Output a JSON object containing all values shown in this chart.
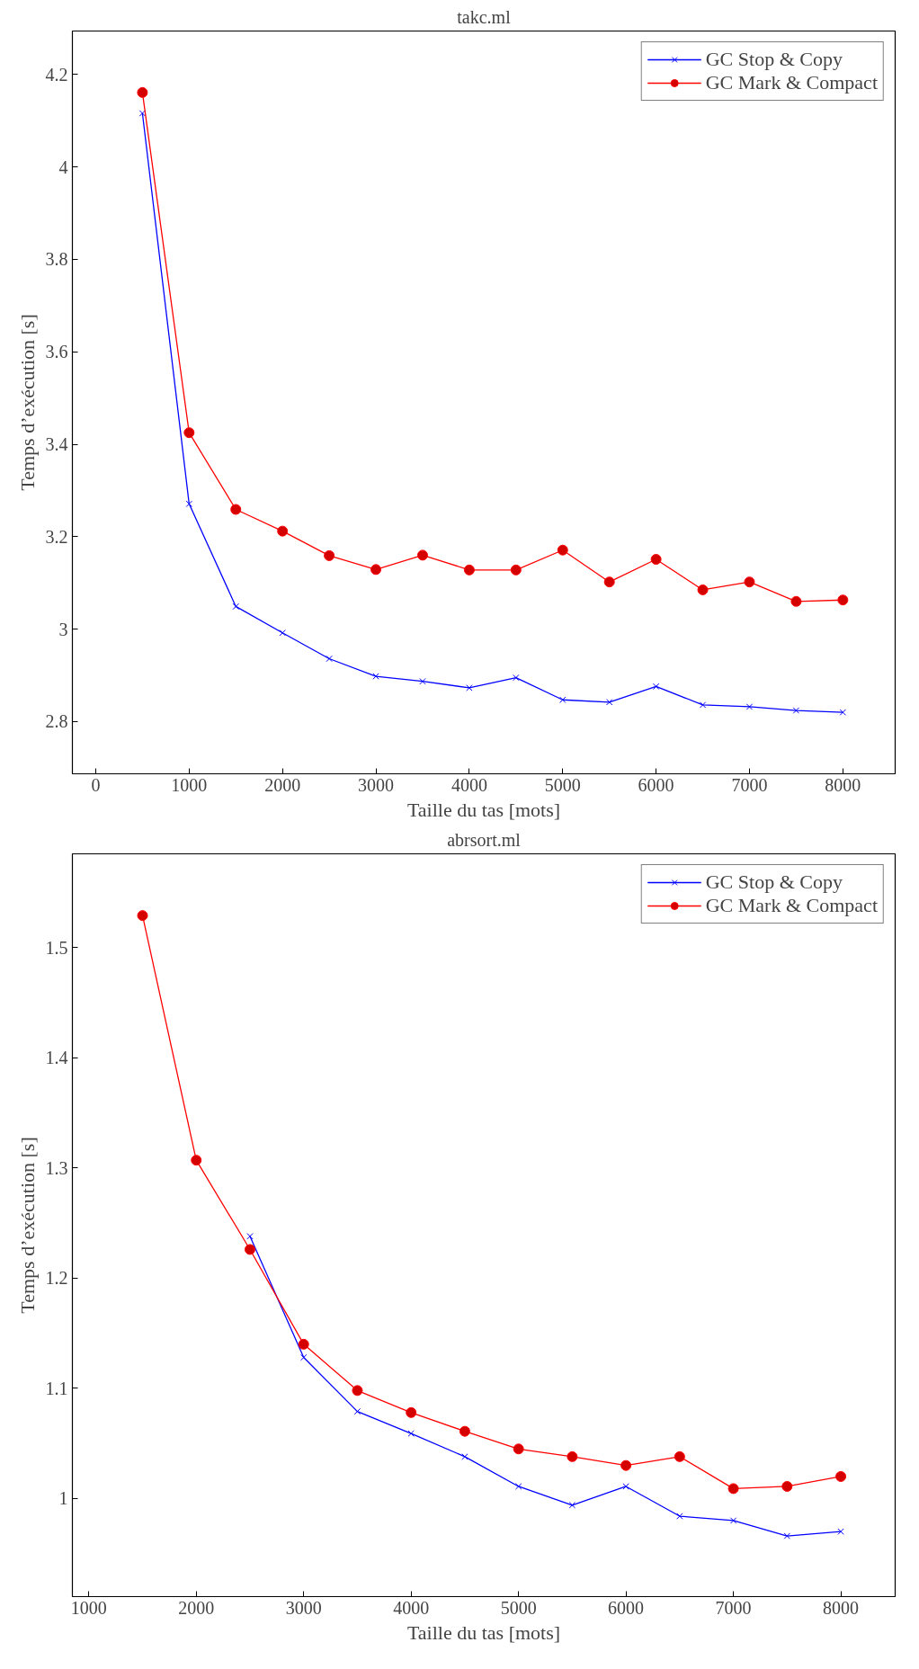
{
  "chart_data": [
    {
      "type": "line",
      "title": "takc.ml",
      "xlabel": "Taille du tas [mots]",
      "ylabel": "Temps d’exécution [s]",
      "xlim": [
        -250,
        8560
      ],
      "ylim": [
        2.687,
        4.294
      ],
      "xticks": [
        0,
        1000,
        2000,
        3000,
        4000,
        5000,
        6000,
        7000,
        8000
      ],
      "yticks": [
        2.8,
        3,
        3.2,
        3.4,
        3.6,
        3.8,
        4,
        4.2
      ],
      "grid": false,
      "legend": "top right",
      "series": [
        {
          "name": "GC Stop & Copy",
          "color": "#0000ff",
          "marker": "cross",
          "x": [
            500,
            1000,
            1500,
            2000,
            2500,
            3000,
            3500,
            4000,
            4500,
            5000,
            5500,
            6000,
            6500,
            7000,
            7500,
            8000
          ],
          "values": [
            4.116,
            3.271,
            3.049,
            2.992,
            2.936,
            2.898,
            2.887,
            2.873,
            2.895,
            2.847,
            2.842,
            2.876,
            2.836,
            2.832,
            2.824,
            2.82
          ]
        },
        {
          "name": "GC Mark & Compact",
          "color": "#ff0000",
          "marker": "circle",
          "x": [
            500,
            1000,
            1500,
            2000,
            2500,
            3000,
            3500,
            4000,
            4500,
            5000,
            5500,
            6000,
            6500,
            7000,
            7500,
            8000
          ],
          "values": [
            4.161,
            3.425,
            3.259,
            3.212,
            3.159,
            3.129,
            3.16,
            3.128,
            3.128,
            3.171,
            3.102,
            3.151,
            3.085,
            3.102,
            3.06,
            3.063
          ]
        }
      ]
    },
    {
      "type": "line",
      "title": "abrsort.ml",
      "xlabel": "Taille du tas [mots]",
      "ylabel": "Temps d’exécution [s]",
      "xlim": [
        847,
        8506
      ],
      "ylim": [
        0.911,
        1.585
      ],
      "xticks": [
        1000,
        2000,
        3000,
        4000,
        5000,
        6000,
        7000,
        8000
      ],
      "yticks": [
        1,
        1.1,
        1.2,
        1.3,
        1.4,
        1.5
      ],
      "grid": false,
      "legend": "top right",
      "series": [
        {
          "name": "GC Stop & Copy",
          "color": "#0000ff",
          "marker": "cross",
          "x": [
            2500,
            3000,
            3500,
            4000,
            4500,
            5000,
            5500,
            6000,
            6500,
            7000,
            7500,
            8000
          ],
          "values": [
            1.238,
            1.128,
            1.079,
            1.059,
            1.038,
            1.011,
            0.994,
            1.011,
            0.984,
            0.98,
            0.966,
            0.97
          ]
        },
        {
          "name": "GC Mark & Compact",
          "color": "#ff0000",
          "marker": "circle",
          "x": [
            1500,
            2000,
            2500,
            3000,
            3500,
            4000,
            4500,
            5000,
            5500,
            6000,
            6500,
            7000,
            7500,
            8000
          ],
          "values": [
            1.529,
            1.307,
            1.226,
            1.14,
            1.098,
            1.078,
            1.061,
            1.045,
            1.038,
            1.03,
            1.038,
            1.009,
            1.011,
            1.02
          ]
        }
      ]
    }
  ]
}
